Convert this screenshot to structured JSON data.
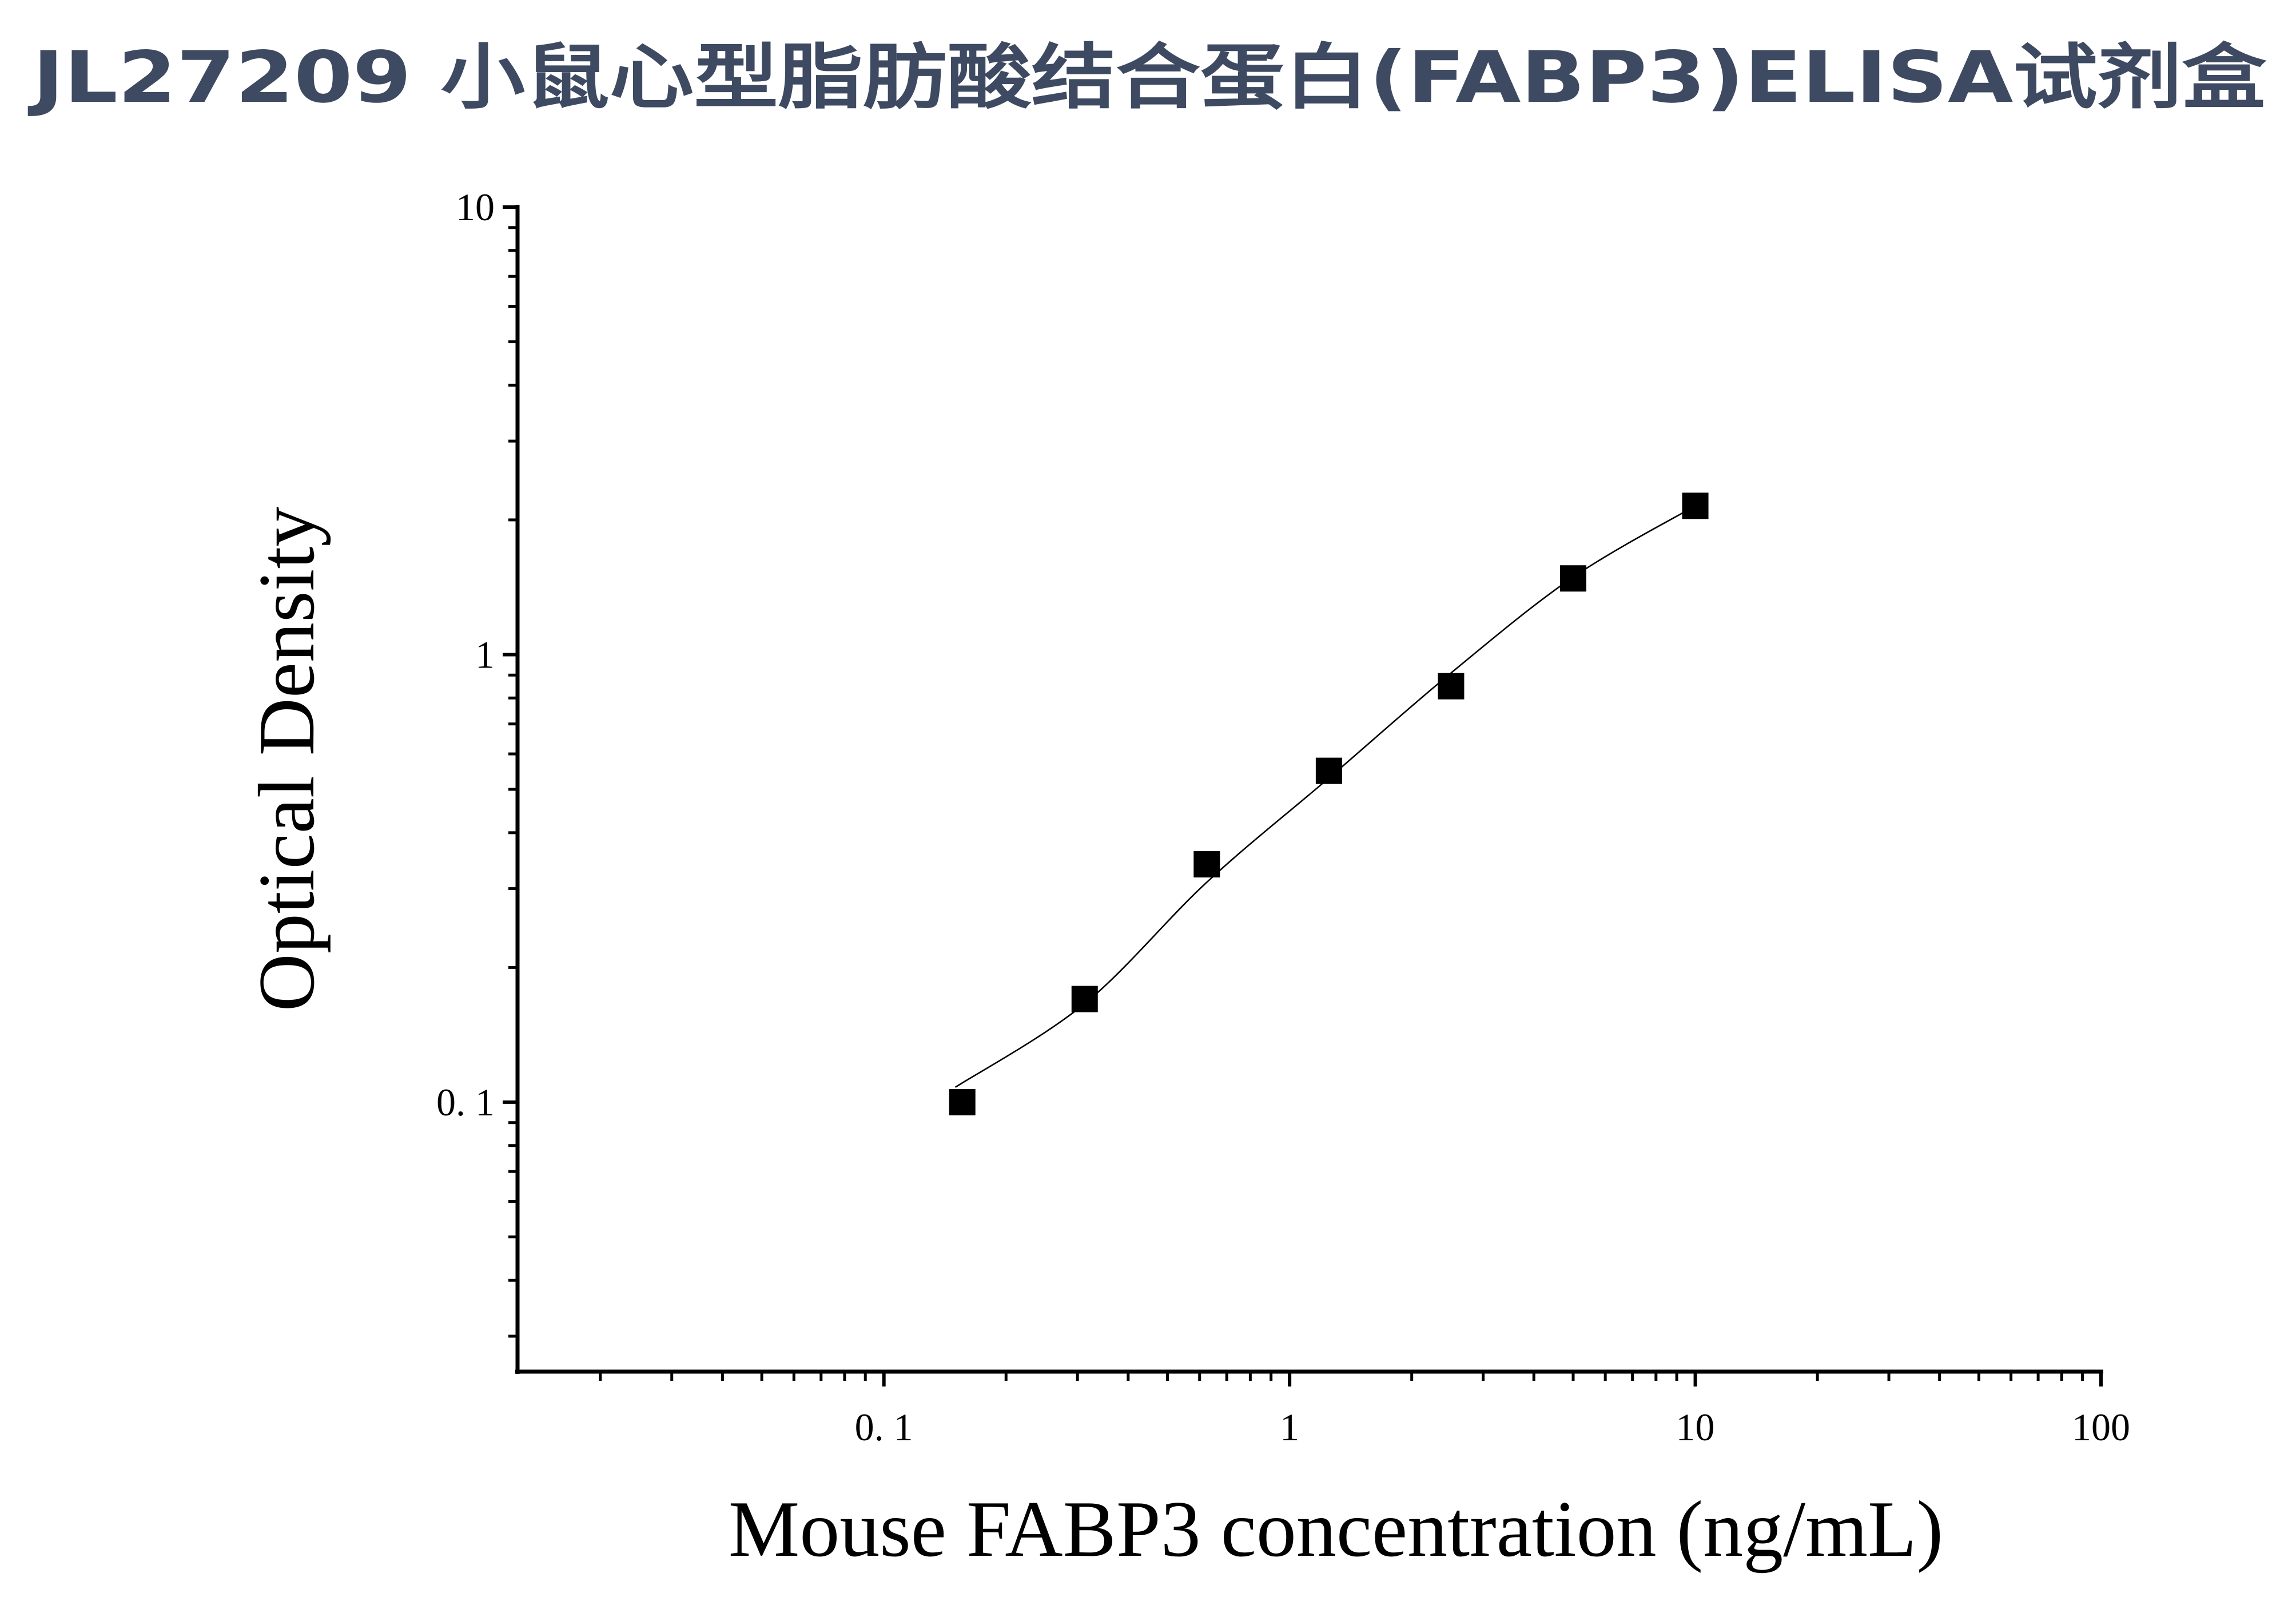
{
  "chart_data": {
    "type": "scatter",
    "title": "JL27209 小鼠心型脂肪酸结合蛋白(FABP3)ELISA试剂盒",
    "x_label": "Mouse FABP3 concentration (ng/mL)",
    "y_label": "Optical Density",
    "x": [
      0.156,
      0.3125,
      0.625,
      1.25,
      2.5,
      5,
      10
    ],
    "values": [
      0.1,
      0.17,
      0.34,
      0.55,
      0.85,
      1.48,
      2.15
    ],
    "color": "#000000",
    "fit_curve": {
      "x": [
        0.15,
        0.3125,
        0.625,
        1.25,
        2.5,
        5,
        10
      ],
      "values": [
        0.108,
        0.166,
        0.31,
        0.53,
        0.91,
        1.49,
        2.15
      ]
    },
    "xlim": [
      0.0125,
      100
    ],
    "ylim": [
      0.025,
      10
    ],
    "xscale": "log",
    "yscale": "log",
    "xticks": [
      {
        "value": 0.1,
        "label": "0. 1"
      },
      1,
      10,
      100
    ],
    "yticks": [
      {
        "value": 0.1,
        "label": "0. 1"
      },
      1,
      10
    ],
    "xminor_ticks": [
      0.02,
      0.03,
      0.04,
      0.05,
      0.06,
      0.07,
      0.08,
      0.09,
      0.2,
      0.3,
      0.4,
      0.5,
      0.6,
      0.7,
      0.8,
      0.9,
      2,
      3,
      4,
      5,
      6,
      7,
      8,
      9,
      20,
      30,
      40,
      50,
      60,
      70,
      80,
      90
    ],
    "yminor_ticks": [
      0.03,
      0.04,
      0.05,
      0.06,
      0.07,
      0.08,
      0.09,
      0.2,
      0.3,
      0.4,
      0.5,
      0.6,
      0.7,
      0.8,
      0.9,
      2,
      3,
      4,
      5,
      6,
      7,
      8,
      9
    ],
    "grid": false
  }
}
